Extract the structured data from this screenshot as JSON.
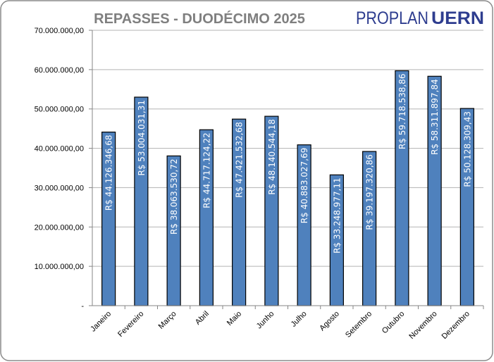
{
  "chart_data": {
    "type": "bar",
    "title": "REPASSES - DUODÉCIMO 2025",
    "logo": {
      "text_light": "PROPLAN",
      "text_bold": "UERN"
    },
    "categories": [
      "Janeiro",
      "Fevereiro",
      "Março",
      "Abril",
      "Maio",
      "Junho",
      "Julho",
      "Agosto",
      "Setembro",
      "Outubro",
      "Novembro",
      "Dezembro"
    ],
    "values": [
      44126346.68,
      53004031.31,
      38063530.72,
      44717124.22,
      47421532.68,
      48140544.18,
      40883027.69,
      33248977.11,
      39197320.86,
      59718538.86,
      58311897.84,
      50128309.43
    ],
    "data_labels": [
      "R$ 44.126.346,68",
      "R$ 53.004.031,31",
      "R$ 38.063.530,72",
      "R$ 44.717.124,22",
      "R$ 47.421.532,68",
      "R$ 48.140.544,18",
      "R$ 40.883.027,69",
      "R$ 33.248.977,11",
      "R$ 39.197.320,86",
      "R$ 59.718.538,86",
      "R$ 58.311.897,84",
      "R$ 50.128.309,43"
    ],
    "ylim": [
      0,
      70000000
    ],
    "yticks": [
      "-",
      "10.000.000,00",
      "20.000.000,00",
      "30.000.000,00",
      "40.000.000,00",
      "50.000.000,00",
      "60.000.000,00",
      "70.000.000,00"
    ],
    "grid": true,
    "colors": {
      "bar": "#4f81bd",
      "title": "#7f7f7f",
      "logo": "#2e3d8f"
    }
  }
}
